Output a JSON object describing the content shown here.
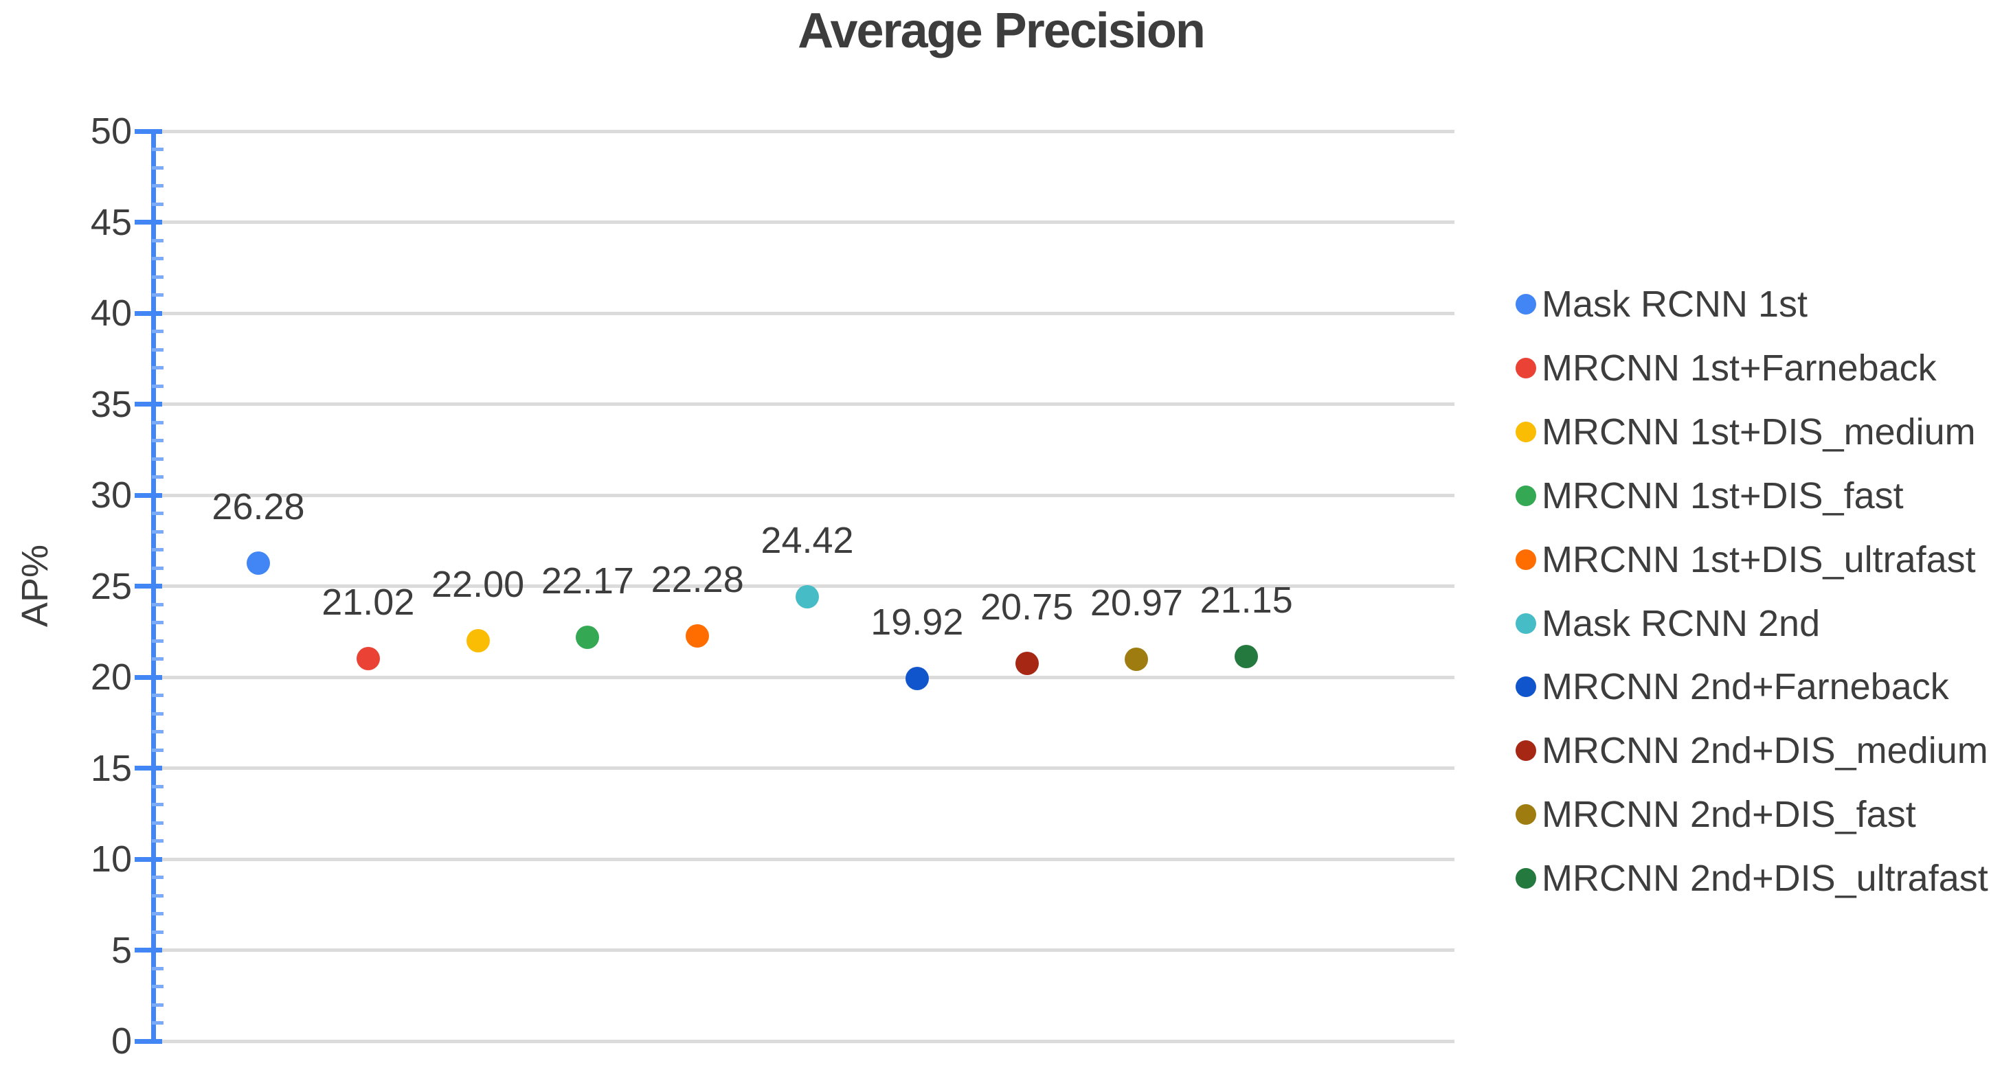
{
  "title": "Average Precision",
  "chart_data": {
    "type": "scatter",
    "title": "Average Precision",
    "xlabel": "",
    "ylabel": "AP%",
    "ylim": [
      0,
      50
    ],
    "y_tick_step": 5,
    "y_minor_tick_step": 1,
    "y_tick_labels": [
      "0",
      "5",
      "10",
      "15",
      "20",
      "25",
      "30",
      "35",
      "40",
      "45",
      "50"
    ],
    "grid": true,
    "x_axis_visible": false,
    "legend_position": "right",
    "data_labels_shown": true,
    "series": [
      {
        "name": "Mask RCNN 1st",
        "value": 26.28,
        "label": "26.28",
        "color": "#4285f4"
      },
      {
        "name": "MRCNN 1st+Farneback",
        "value": 21.02,
        "label": "21.02",
        "color": "#ea4335"
      },
      {
        "name": "MRCNN 1st+DIS_medium",
        "value": 22.0,
        "label": "22.00",
        "color": "#fbbc04"
      },
      {
        "name": "MRCNN 1st+DIS_fast",
        "value": 22.17,
        "label": "22.17",
        "color": "#34a853"
      },
      {
        "name": "MRCNN 1st+DIS_ultrafast",
        "value": 22.28,
        "label": "22.28",
        "color": "#ff6d01"
      },
      {
        "name": "Mask RCNN 2nd",
        "value": 24.42,
        "label": "24.42",
        "color": "#46bdc6"
      },
      {
        "name": "MRCNN 2nd+Farneback",
        "value": 19.92,
        "label": "19.92",
        "color": "#1155cc"
      },
      {
        "name": "MRCNN 2nd+DIS_medium",
        "value": 20.75,
        "label": "20.75",
        "color": "#a52714"
      },
      {
        "name": "MRCNN 2nd+DIS_fast",
        "value": 20.97,
        "label": "20.97",
        "color": "#9e7c0f"
      },
      {
        "name": "MRCNN 2nd+DIS_ultrafast",
        "value": 21.15,
        "label": "21.15",
        "color": "#24793e"
      }
    ],
    "colors": {
      "axis": "#4285f4",
      "minor_tick": "#7baaf7",
      "gridline": "#dbdbdb",
      "text": "#3d3d3d"
    }
  }
}
